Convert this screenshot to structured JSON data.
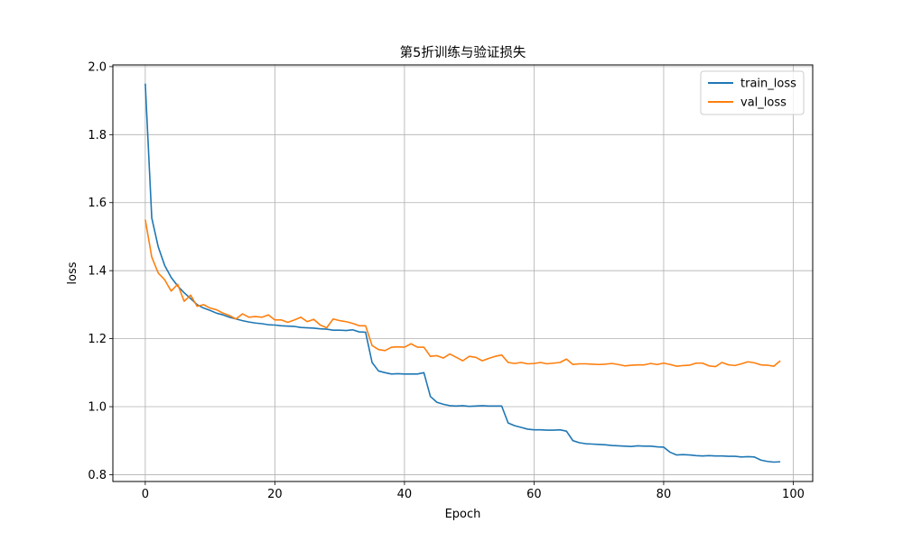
{
  "chart_data": {
    "type": "line",
    "title": "第5折训练与验证损失",
    "xlabel": "Epoch",
    "ylabel": "loss",
    "xlim": [
      -5,
      103
    ],
    "ylim": [
      0.78,
      2.005
    ],
    "xticks": [
      0,
      20,
      40,
      60,
      80,
      100
    ],
    "yticks": [
      0.8,
      1.0,
      1.2,
      1.4,
      1.6,
      1.8,
      2.0
    ],
    "ytick_labels": [
      "0.8",
      "1.0",
      "1.2",
      "1.4",
      "1.6",
      "1.8",
      "2.0"
    ],
    "grid": true,
    "legend_position": "top-right",
    "series": [
      {
        "name": "train_loss",
        "color": "#1f77b4",
        "values": [
          1.95,
          1.555,
          1.47,
          1.415,
          1.38,
          1.355,
          1.335,
          1.318,
          1.3,
          1.29,
          1.283,
          1.275,
          1.27,
          1.263,
          1.258,
          1.253,
          1.249,
          1.246,
          1.244,
          1.241,
          1.24,
          1.238,
          1.237,
          1.236,
          1.233,
          1.232,
          1.231,
          1.229,
          1.228,
          1.225,
          1.225,
          1.224,
          1.226,
          1.22,
          1.219,
          1.13,
          1.105,
          1.1,
          1.096,
          1.097,
          1.096,
          1.096,
          1.096,
          1.1,
          1.03,
          1.013,
          1.007,
          1.003,
          1.002,
          1.003,
          1.001,
          1.002,
          1.003,
          1.002,
          1.002,
          1.002,
          0.952,
          0.944,
          0.939,
          0.934,
          0.932,
          0.932,
          0.931,
          0.931,
          0.932,
          0.928,
          0.9,
          0.894,
          0.891,
          0.89,
          0.889,
          0.888,
          0.886,
          0.885,
          0.884,
          0.883,
          0.885,
          0.884,
          0.884,
          0.882,
          0.881,
          0.866,
          0.858,
          0.859,
          0.858,
          0.856,
          0.855,
          0.856,
          0.855,
          0.855,
          0.854,
          0.854,
          0.852,
          0.853,
          0.852,
          0.843,
          0.839,
          0.837,
          0.838
        ]
      },
      {
        "name": "val_loss",
        "color": "#ff7f0e",
        "values": [
          1.55,
          1.44,
          1.393,
          1.373,
          1.34,
          1.36,
          1.31,
          1.328,
          1.295,
          1.3,
          1.29,
          1.285,
          1.275,
          1.268,
          1.258,
          1.273,
          1.263,
          1.265,
          1.263,
          1.27,
          1.255,
          1.255,
          1.248,
          1.255,
          1.263,
          1.25,
          1.257,
          1.24,
          1.232,
          1.258,
          1.253,
          1.25,
          1.245,
          1.238,
          1.238,
          1.18,
          1.168,
          1.165,
          1.175,
          1.176,
          1.175,
          1.185,
          1.175,
          1.175,
          1.148,
          1.15,
          1.143,
          1.155,
          1.145,
          1.135,
          1.148,
          1.145,
          1.135,
          1.142,
          1.148,
          1.152,
          1.13,
          1.127,
          1.13,
          1.126,
          1.127,
          1.13,
          1.126,
          1.128,
          1.13,
          1.14,
          1.124,
          1.126,
          1.126,
          1.125,
          1.124,
          1.125,
          1.127,
          1.124,
          1.12,
          1.122,
          1.123,
          1.123,
          1.127,
          1.124,
          1.128,
          1.124,
          1.119,
          1.121,
          1.122,
          1.128,
          1.128,
          1.12,
          1.118,
          1.13,
          1.123,
          1.121,
          1.126,
          1.132,
          1.129,
          1.123,
          1.122,
          1.119,
          1.135
        ]
      }
    ]
  }
}
